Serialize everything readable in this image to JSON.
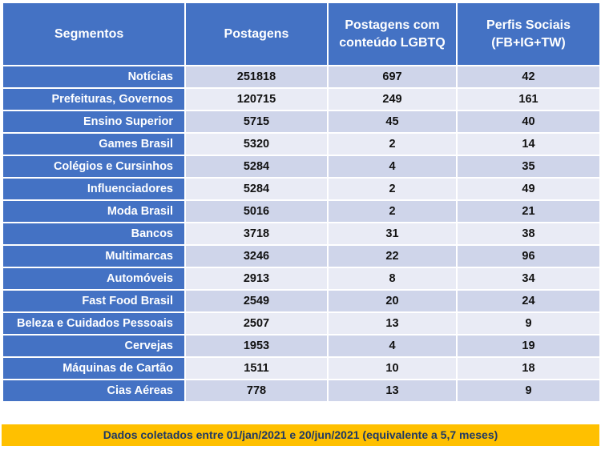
{
  "headers": {
    "segment": "Segmentos",
    "posts": "Postagens",
    "lgbtq_line1": "Postagens com",
    "lgbtq_line2": "conteúdo LGBTQ",
    "profiles_line1": "Perfis Sociais",
    "profiles_line2": "(FB+IG+TW)"
  },
  "rows": [
    {
      "segment": "Notícias",
      "posts": "251818",
      "lgbtq": "697",
      "profiles": "42"
    },
    {
      "segment": "Prefeituras, Governos",
      "posts": "120715",
      "lgbtq": "249",
      "profiles": "161"
    },
    {
      "segment": "Ensino Superior",
      "posts": "5715",
      "lgbtq": "45",
      "profiles": "40"
    },
    {
      "segment": "Games Brasil",
      "posts": "5320",
      "lgbtq": "2",
      "profiles": "14"
    },
    {
      "segment": "Colégios e Cursinhos",
      "posts": "5284",
      "lgbtq": "4",
      "profiles": "35"
    },
    {
      "segment": "Influenciadores",
      "posts": "5284",
      "lgbtq": "2",
      "profiles": "49"
    },
    {
      "segment": "Moda Brasil",
      "posts": "5016",
      "lgbtq": "2",
      "profiles": "21"
    },
    {
      "segment": "Bancos",
      "posts": "3718",
      "lgbtq": "31",
      "profiles": "38"
    },
    {
      "segment": "Multimarcas",
      "posts": "3246",
      "lgbtq": "22",
      "profiles": "96"
    },
    {
      "segment": "Automóveis",
      "posts": "2913",
      "lgbtq": "8",
      "profiles": "34"
    },
    {
      "segment": "Fast Food Brasil",
      "posts": "2549",
      "lgbtq": "20",
      "profiles": "24"
    },
    {
      "segment": "Beleza e Cuidados Pessoais",
      "posts": "2507",
      "lgbtq": "13",
      "profiles": "9"
    },
    {
      "segment": "Cervejas",
      "posts": "1953",
      "lgbtq": "4",
      "profiles": "19"
    },
    {
      "segment": "Máquinas de Cartão",
      "posts": "1511",
      "lgbtq": "10",
      "profiles": "18"
    },
    {
      "segment": "Cias Aéreas",
      "posts": "778",
      "lgbtq": "13",
      "profiles": "9"
    }
  ],
  "footer": "Dados coletados entre 01/jan/2021 e 20/jun/2021 (equivalente a 5,7 meses)",
  "colors": {
    "header_blue": "#4472C4",
    "row_dark": "#CFD5EA",
    "row_light": "#E9EBF5",
    "footer_yellow": "#FFC000"
  }
}
